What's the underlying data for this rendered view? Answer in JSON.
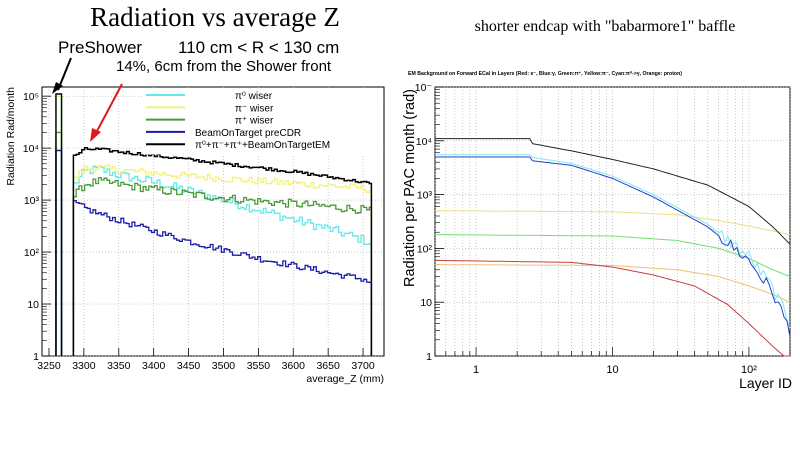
{
  "slide": {
    "title": "Radiation vs average Z",
    "right_title": "shorter endcap with \"babarmore1\" baffle",
    "ann_preshower": "PreShower",
    "ann_range": "110 cm < R < 130 cm",
    "ann_pct": "14%, 6cm from the Shower front"
  },
  "colors": {
    "pi0": "#66e8e8",
    "pim": "#f2f27a",
    "pip": "#4a9a3a",
    "beam": "#1a1aa8",
    "sum": "#000000",
    "arrow": "#e01818",
    "right_red": "#c84040",
    "right_blue": "#2040d0",
    "right_green": "#70e070",
    "right_yellow": "#ece080",
    "right_cyan": "#80e8f0",
    "right_orange": "#f0c070"
  },
  "chart_data": [
    {
      "type": "line",
      "title": "",
      "xlabel": "average_Z (mm)",
      "ylabel": "Radiation Rad/month",
      "xlim": [
        3240,
        3730
      ],
      "ylim": [
        1,
        150000
      ],
      "log_y": true,
      "grid": true,
      "legend_position": "top-right",
      "x_ticks": [
        "3250",
        "3300",
        "3350",
        "3400",
        "3450",
        "3500",
        "3550",
        "3600",
        "3650",
        "3700"
      ],
      "y_ticks": [
        "1",
        "10",
        "10²",
        "10³",
        "10⁴",
        "10⁵"
      ],
      "y_tick_values": [
        1,
        10,
        100,
        1000,
        10000,
        100000
      ],
      "x_tick_values": [
        3250,
        3300,
        3350,
        3400,
        3450,
        3500,
        3550,
        3600,
        3650,
        3700
      ],
      "legend": [
        "π⁰ wiser",
        "π⁻ wiser",
        "π⁺ wiser",
        "BeamOnTarget preCDR",
        "π⁰+π⁻+π⁺+BeamOnTargetEM"
      ],
      "preshower": {
        "z_range": [
          3260,
          3268
        ],
        "pi0": 100000,
        "pim": 100000,
        "pip": 20000,
        "beam": 9000,
        "sum": 110000
      },
      "series": [
        {
          "name": "π⁰ wiser",
          "x": [
            3285,
            3300,
            3320,
            3350,
            3400,
            3450,
            3500,
            3550,
            3600,
            3650,
            3700,
            3712
          ],
          "values": [
            2000,
            3500,
            4000,
            3000,
            2200,
            1500,
            1000,
            650,
            420,
            280,
            170,
            140
          ]
        },
        {
          "name": "π⁻ wiser",
          "x": [
            3285,
            3300,
            3320,
            3350,
            3400,
            3450,
            3500,
            3550,
            3600,
            3650,
            3700,
            3712
          ],
          "values": [
            2500,
            4000,
            4200,
            3800,
            3300,
            2900,
            2600,
            2300,
            2100,
            1900,
            1700,
            1500
          ]
        },
        {
          "name": "π⁺ wiser",
          "x": [
            3285,
            3300,
            3320,
            3350,
            3400,
            3450,
            3500,
            3550,
            3600,
            3650,
            3700,
            3712
          ],
          "values": [
            1200,
            2000,
            2300,
            2000,
            1600,
            1300,
            1100,
            950,
            850,
            750,
            650,
            600
          ]
        },
        {
          "name": "BeamOnTarget preCDR",
          "x": [
            3285,
            3300,
            3320,
            3350,
            3400,
            3450,
            3500,
            3550,
            3600,
            3650,
            3700,
            3712
          ],
          "values": [
            900,
            700,
            550,
            400,
            250,
            160,
            110,
            75,
            55,
            40,
            30,
            25
          ]
        },
        {
          "name": "π⁰+π⁻+π⁺+BeamOnTargetEM",
          "x": [
            3285,
            3300,
            3320,
            3350,
            3400,
            3450,
            3500,
            3550,
            3600,
            3650,
            3700,
            3712
          ],
          "values": [
            7000,
            9500,
            9500,
            8500,
            7200,
            6000,
            5000,
            4200,
            3500,
            2800,
            2200,
            2000
          ]
        }
      ]
    },
    {
      "type": "line",
      "title": "EM Background on Forward ECal in Layers (Red: e⁻, Blue:γ, Green:π⁺, Yellow:π⁻, Cyan:π⁰->γ, Orange: proton)",
      "xlabel": "Layer ID",
      "ylabel": "Radiation per PAC month (rad)",
      "xlim": [
        0.5,
        200
      ],
      "ylim": [
        1,
        100000
      ],
      "log_x": true,
      "log_y": true,
      "grid": true,
      "x_ticks": [
        "1",
        "10",
        "10²"
      ],
      "x_tick_values": [
        1,
        10,
        100
      ],
      "y_ticks": [
        "1",
        "10",
        "10²",
        "10³",
        "10⁴",
        "10⁻"
      ],
      "y_tick_values": [
        1,
        10,
        100,
        1000,
        10000,
        100000
      ],
      "series": [
        {
          "name": "Black",
          "x": [
            0.5,
            2.5,
            2.5,
            5,
            10,
            20,
            50,
            100,
            150,
            200
          ],
          "values": [
            11000,
            11000,
            9000,
            6500,
            4500,
            3000,
            1500,
            600,
            250,
            120
          ]
        },
        {
          "name": "Blue",
          "x": [
            0.5,
            2.5,
            2.5,
            5,
            10,
            20,
            50,
            100,
            150,
            200
          ],
          "values": [
            5000,
            5000,
            4300,
            3500,
            2000,
            900,
            250,
            60,
            15,
            3
          ]
        },
        {
          "name": "Cyan",
          "x": [
            0.5,
            2.5,
            2.5,
            5,
            10,
            20,
            50,
            100,
            150,
            200
          ],
          "values": [
            5500,
            5500,
            5000,
            3800,
            2200,
            1000,
            280,
            70,
            18,
            4
          ]
        },
        {
          "name": "Yellow",
          "x": [
            0.5,
            10,
            30,
            60,
            100,
            150,
            200
          ],
          "values": [
            500,
            480,
            420,
            330,
            260,
            210,
            180
          ]
        },
        {
          "name": "Green",
          "x": [
            0.5,
            10,
            30,
            60,
            100,
            150,
            200
          ],
          "values": [
            180,
            170,
            140,
            100,
            65,
            40,
            30
          ]
        },
        {
          "name": "Red",
          "x": [
            0.5,
            5,
            10,
            20,
            40,
            70,
            100,
            150,
            200
          ],
          "values": [
            60,
            55,
            45,
            32,
            20,
            9,
            4,
            1.5,
            0.8
          ]
        },
        {
          "name": "Orange",
          "x": [
            0.5,
            10,
            30,
            60,
            100,
            150,
            200
          ],
          "values": [
            50,
            48,
            40,
            30,
            20,
            14,
            10
          ]
        }
      ]
    }
  ]
}
